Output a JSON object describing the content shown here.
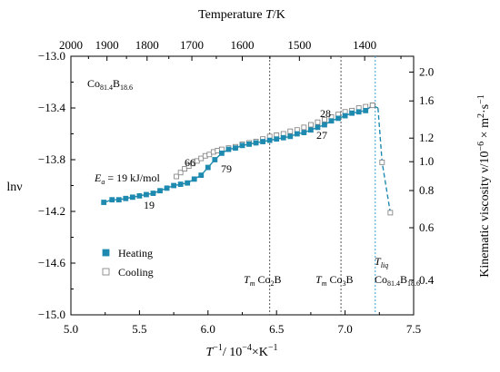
{
  "chart_data": {
    "type": "scatter",
    "bottom_axis": {
      "label": "T⁻¹ / 10⁻⁴ ×K⁻¹",
      "label_parts": {
        "sym": "T",
        "exp1": "−1",
        "mid": "/ 10",
        "exp2": "−4",
        "unit": "×K",
        "exp3": "−1"
      },
      "range": [
        5.0,
        7.5
      ],
      "ticks": [
        "5.0",
        "5.5",
        "6.0",
        "6.5",
        "7.0",
        "7.5"
      ]
    },
    "left_axis": {
      "label": "lnν",
      "range": [
        -15.0,
        -13.0
      ],
      "ticks": [
        "−13.0",
        "−13.4",
        "−13.8",
        "−14.2",
        "−14.6",
        "−15.0"
      ]
    },
    "top_axis": {
      "label": "Temperature T/K",
      "label_parts": {
        "pre": "Temperature ",
        "sym": "T",
        "post": "/K"
      },
      "ticks": [
        {
          "label": "2000",
          "value": 2000
        },
        {
          "label": "1900",
          "value": 1900
        },
        {
          "label": "1800",
          "value": 1800
        },
        {
          "label": "1700",
          "value": 1700
        },
        {
          "label": "1600",
          "value": 1600
        },
        {
          "label": "1500",
          "value": 1500
        },
        {
          "label": "1400",
          "value": 1400
        }
      ]
    },
    "right_axis": {
      "label": "Kinematic viscosity ν/10⁻⁶ × m²·s⁻¹",
      "label_parts": {
        "pre": "Kinematic viscosity ν/10",
        "exp1": "−6",
        "mid": " × m",
        "exp2": "2",
        "dot": "·s",
        "exp3": "−1"
      },
      "ticks": [
        {
          "label": "2.0",
          "value": 2.0
        },
        {
          "label": "1.6",
          "value": 1.6
        },
        {
          "label": "1.2",
          "value": 1.2
        },
        {
          "label": "1.0",
          "value": 1.0
        },
        {
          "label": "0.8",
          "value": 0.8
        },
        {
          "label": "0.6",
          "value": 0.6
        },
        {
          "label": "0.4",
          "value": 0.4
        }
      ]
    },
    "series": [
      {
        "name": "Heating",
        "marker": "filled-square",
        "color": "#1f8ab0",
        "x": [
          5.24,
          5.3,
          5.35,
          5.4,
          5.45,
          5.5,
          5.55,
          5.6,
          5.65,
          5.7,
          5.75,
          5.8,
          5.85,
          5.9,
          5.95,
          6.0,
          6.05,
          6.1,
          6.15,
          6.2,
          6.25,
          6.3,
          6.35,
          6.4,
          6.45,
          6.5,
          6.55,
          6.6,
          6.65,
          6.7,
          6.75,
          6.8,
          6.85,
          6.9,
          6.95,
          7.0,
          7.05,
          7.1,
          7.15
        ],
        "y": [
          -14.13,
          -14.11,
          -14.11,
          -14.1,
          -14.09,
          -14.08,
          -14.07,
          -14.06,
          -14.04,
          -14.02,
          -14.0,
          -13.99,
          -13.98,
          -13.95,
          -13.92,
          -13.86,
          -13.8,
          -13.75,
          -13.72,
          -13.71,
          -13.69,
          -13.68,
          -13.67,
          -13.66,
          -13.65,
          -13.64,
          -13.63,
          -13.62,
          -13.6,
          -13.59,
          -13.57,
          -13.55,
          -13.53,
          -13.5,
          -13.48,
          -13.46,
          -13.44,
          -13.43,
          -13.42
        ]
      },
      {
        "name": "Cooling",
        "marker": "open-square",
        "color": "#7a7a7a",
        "x": [
          5.77,
          5.8,
          5.83,
          5.86,
          5.89,
          5.92,
          5.95,
          5.98,
          6.01,
          6.04,
          6.07,
          6.1,
          6.15,
          6.2,
          6.25,
          6.3,
          6.35,
          6.4,
          6.45,
          6.5,
          6.55,
          6.6,
          6.65,
          6.7,
          6.75,
          6.8,
          6.85,
          6.9,
          6.95,
          7.0,
          7.05,
          7.1,
          7.15,
          7.2
        ],
        "y": [
          -13.93,
          -13.9,
          -13.87,
          -13.85,
          -13.83,
          -13.81,
          -13.79,
          -13.77,
          -13.76,
          -13.74,
          -13.73,
          -13.72,
          -13.71,
          -13.7,
          -13.68,
          -13.67,
          -13.66,
          -13.64,
          -13.62,
          -13.61,
          -13.6,
          -13.58,
          -13.57,
          -13.55,
          -13.53,
          -13.51,
          -13.49,
          -13.47,
          -13.45,
          -13.43,
          -13.42,
          -13.4,
          -13.39,
          -13.38
        ]
      }
    ],
    "extra_lines": [
      {
        "x": [
          7.15,
          7.2,
          7.24
        ],
        "y": [
          -13.42,
          -13.38,
          -13.4
        ],
        "style": "solid"
      },
      {
        "x": [
          7.24,
          7.27,
          7.33
        ],
        "y": [
          -13.4,
          -13.82,
          -14.21
        ],
        "style": "dashed"
      }
    ],
    "extra_markers": [
      {
        "x": 7.2,
        "y": -13.38,
        "marker": "open-square"
      },
      {
        "x": 7.27,
        "y": -13.82,
        "marker": "open-square"
      },
      {
        "x": 7.33,
        "y": -14.21,
        "marker": "open-square"
      }
    ],
    "vertical_lines": [
      {
        "x": 6.45,
        "color": "#555555",
        "dash": "dotted"
      },
      {
        "x": 6.97,
        "color": "#555555",
        "dash": "dotted"
      },
      {
        "x": 7.22,
        "color": "#3aa0d8",
        "dash": "dotted"
      }
    ],
    "annotations": {
      "composition": {
        "base": "Co",
        "sub1": "81.4",
        "mid": "B",
        "sub2": "18.6"
      },
      "ea": {
        "sym": "E",
        "sub": "a",
        "text": " = 19 kJ/mol"
      },
      "numbers": [
        "19",
        "66",
        "79",
        "28",
        "27"
      ],
      "tm_co2b": {
        "sym": "T",
        "sub": "m",
        "text": " Co",
        "sub2": "2",
        "text2": "B"
      },
      "tm_co3b": {
        "sym": "T",
        "sub": "m",
        "text": " Co",
        "sub2": "3",
        "text2": "B"
      },
      "tliq": {
        "sym": "T",
        "sub": "liq"
      },
      "co_b_bottom": {
        "base": "Co",
        "sub1": "81.4",
        "mid": "B",
        "sub2": "18.6"
      }
    },
    "legend": {
      "placement": "bottom-left",
      "items": [
        {
          "label": "Heating",
          "marker": "filled-square"
        },
        {
          "label": "Cooling",
          "marker": "open-square"
        }
      ]
    },
    "grid": false
  }
}
